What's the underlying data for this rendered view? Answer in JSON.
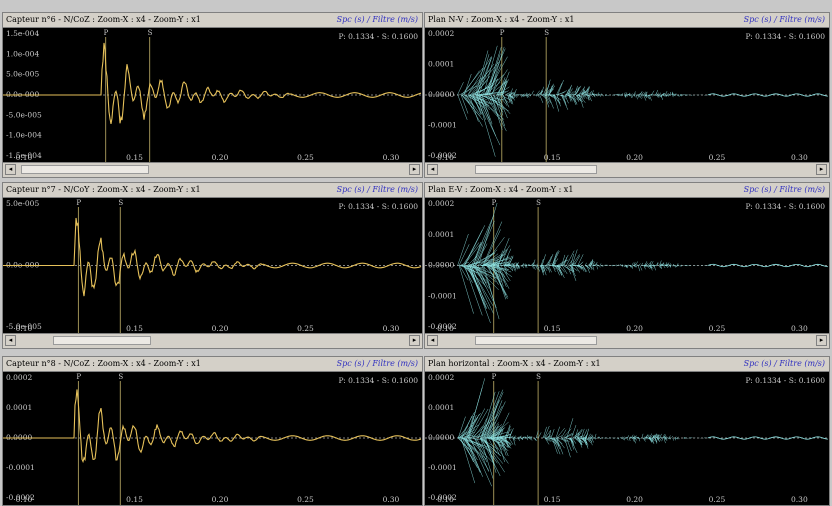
{
  "colors": {
    "left_wave": "#e6c15a",
    "right_wave": "#8fe6e6",
    "p_marker": "#9c8f55",
    "s_marker": "#9c8f55",
    "zero_line": "#b0b0b0",
    "text": "#c8c8c8"
  },
  "panes": [
    {
      "title": "Capteur n°6 - N/CoZ :  Zoom-X : x4 - Zoom-Y : x1",
      "spec": "Spc (s) / Filtre (m/s)",
      "readout": "P: 0.1334 - S: 0.1600",
      "p_label": "P",
      "s_label": "S",
      "y_labels": [
        "1.5e-004",
        "1.0e-004",
        "5.0e-005",
        "0.0e-000",
        "-5.0e-005",
        "-1.0e-004",
        "-1.5e-004"
      ],
      "x_labels": [
        "0.10",
        "0.15",
        "0.20",
        "0.25",
        "0.30"
      ],
      "wave": "left",
      "seed": 1
    },
    {
      "title": "Plan N-V :  Zoom-X : x4 - Zoom-Y : x1",
      "spec": "Spc (s) / Filtre (m/s)",
      "readout": "P: 0.1334 - S: 0.1600",
      "p_label": "P",
      "s_label": "S",
      "y_labels": [
        "0.0002",
        "0.0001",
        "0.0000",
        "-0.0001",
        "-0.0002"
      ],
      "x_labels": [
        "0.10",
        "0.15",
        "0.20",
        "0.25",
        "0.30"
      ],
      "wave": "right",
      "seed": 2
    },
    {
      "title": "Capteur n°7 - N/CoY :  Zoom-X : x4 - Zoom-Y : x1",
      "spec": "Spc (s) / Filtre (m/s)",
      "readout": "P: 0.1334 - S: 0.1600",
      "p_label": "P",
      "s_label": "S",
      "y_labels": [
        "5.0e-005",
        "0.0e-000",
        "-5.0e-005"
      ],
      "x_labels": [
        "0.10",
        "0.15",
        "0.20",
        "0.25",
        "0.30"
      ],
      "wave": "left",
      "seed": 3
    },
    {
      "title": "Plan E-V :  Zoom-X : x4 - Zoom-Y : x1",
      "spec": "Spc (s) / Filtre (m/s)",
      "readout": "P: 0.1334 - S: 0.1600",
      "p_label": "P",
      "s_label": "S",
      "y_labels": [
        "0.0002",
        "0.0001",
        "0.0000",
        "-0.0001",
        "-0.0002"
      ],
      "x_labels": [
        "0.10",
        "0.15",
        "0.20",
        "0.25",
        "0.30"
      ],
      "wave": "right",
      "seed": 4
    },
    {
      "title": "Capteur n°8 - N/CoZ :  Zoom-X : x4 - Zoom-Y : x1",
      "spec": "Spc (s) / Filtre (m/s)",
      "readout": "P: 0.1334 - S: 0.1600",
      "p_label": "P",
      "s_label": "S",
      "y_labels": [
        "0.0002",
        "0.0001",
        "0.0000",
        "-0.0001",
        "-0.0002"
      ],
      "x_labels": [
        "0.10",
        "0.15",
        "0.20",
        "0.25",
        "0.30"
      ],
      "wave": "left",
      "seed": 5
    },
    {
      "title": "Plan horizontal :  Zoom-X : x4 - Zoom-Y : x1",
      "spec": "Spc (s) / Filtre (m/s)",
      "readout": "P: 0.1334 - S: 0.1600",
      "p_label": "P",
      "s_label": "S",
      "y_labels": [
        "0.0002",
        "0.0001",
        "0.0000",
        "-0.0001",
        "-0.0002"
      ],
      "x_labels": [
        "0.10",
        "0.15",
        "0.20",
        "0.25",
        "0.30"
      ],
      "wave": "right",
      "seed": 6
    }
  ]
}
